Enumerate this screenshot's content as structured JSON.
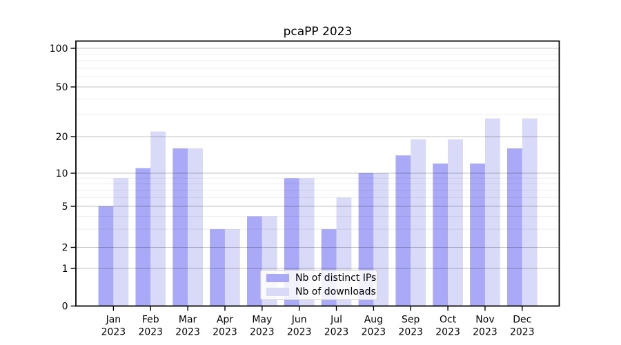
{
  "title": "pcaPP 2023",
  "chart_data": {
    "type": "bar",
    "title": "pcaPP 2023",
    "categories": [
      "Jan",
      "Feb",
      "Mar",
      "Apr",
      "May",
      "Jun",
      "Jul",
      "Aug",
      "Sep",
      "Oct",
      "Nov",
      "Dec"
    ],
    "year_label": "2023",
    "series": [
      {
        "name": "Nb of distinct IPs",
        "color": "#a9a9f7",
        "values": [
          5,
          11,
          16,
          3,
          4,
          9,
          3,
          10,
          14,
          12,
          12,
          16
        ]
      },
      {
        "name": "Nb of downloads",
        "color": "#d9d9f8",
        "values": [
          9,
          22,
          16,
          3,
          4,
          9,
          6,
          10,
          19,
          19,
          28,
          28
        ]
      }
    ],
    "xlabel": "",
    "ylabel": "",
    "y_axis": {
      "scale": "log-like",
      "tick_values": [
        0,
        1,
        2,
        5,
        10,
        20,
        50,
        100
      ],
      "tick_labels": [
        "0",
        "1",
        "2",
        "5",
        "10",
        "20",
        "50",
        "100"
      ],
      "minor_gridline_values": [
        3,
        4,
        6,
        7,
        8,
        9,
        30,
        40,
        60,
        70,
        80,
        90
      ],
      "ylim": [
        0,
        114
      ]
    },
    "grid": true,
    "legend": {
      "position": "lower center",
      "entries": [
        "Nb of distinct IPs",
        "Nb of downloads"
      ]
    }
  },
  "colors": {
    "background": "#ffffff",
    "spine": "#000000",
    "text": "#000000",
    "grid_major": "rgba(0,0,0,0.24)",
    "grid_minor": "rgba(0,0,0,0.07)",
    "bar_distinct_ips": "#a9a9f7",
    "bar_downloads": "#d9d9f8"
  }
}
